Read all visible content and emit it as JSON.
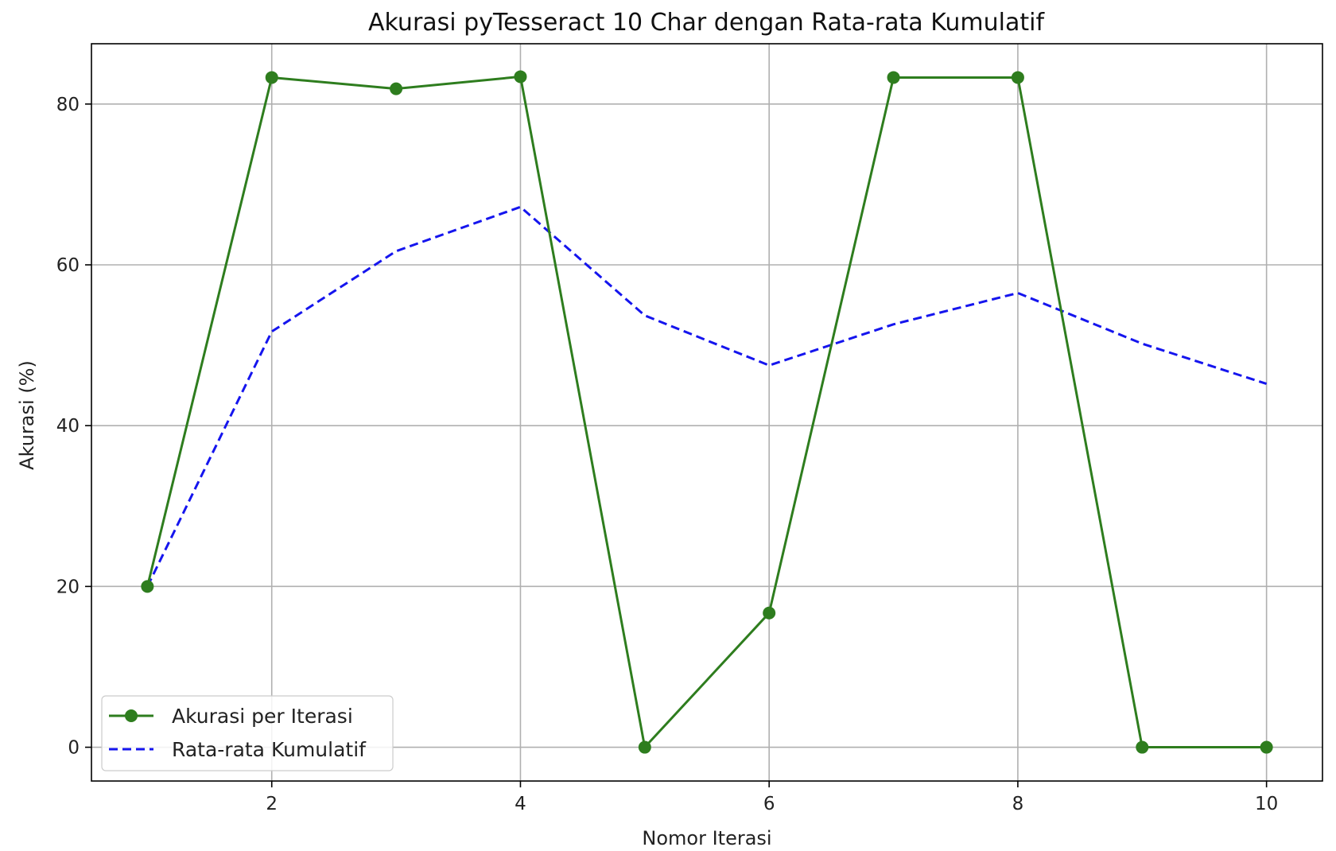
{
  "chart_data": {
    "type": "line",
    "title": "Akurasi pyTesseract 10 Char dengan Rata-rata Kumulatif",
    "xlabel": "Nomor Iterasi",
    "ylabel": "Akurasi (%)",
    "x": [
      1,
      2,
      3,
      4,
      5,
      6,
      7,
      8,
      9,
      10
    ],
    "xlim": [
      0.55,
      10.45
    ],
    "ylim": [
      -4.2,
      87.5
    ],
    "xticks": [
      2,
      4,
      6,
      8,
      10
    ],
    "yticks": [
      0,
      20,
      40,
      60,
      80
    ],
    "grid": true,
    "legend_position": "lower-left",
    "series": [
      {
        "name": "Akurasi per Iterasi",
        "values": [
          20.0,
          83.3,
          81.9,
          83.4,
          0.0,
          16.7,
          83.3,
          83.3,
          0.0,
          0.0
        ],
        "color": "#2e7d1e",
        "style": "solid",
        "marker": "circle"
      },
      {
        "name": "Rata-rata Kumulatif",
        "values": [
          20.0,
          51.7,
          61.7,
          67.2,
          53.7,
          47.5,
          52.6,
          56.5,
          50.2,
          45.2
        ],
        "color": "#1515ee",
        "style": "dashed",
        "marker": "none"
      }
    ]
  }
}
